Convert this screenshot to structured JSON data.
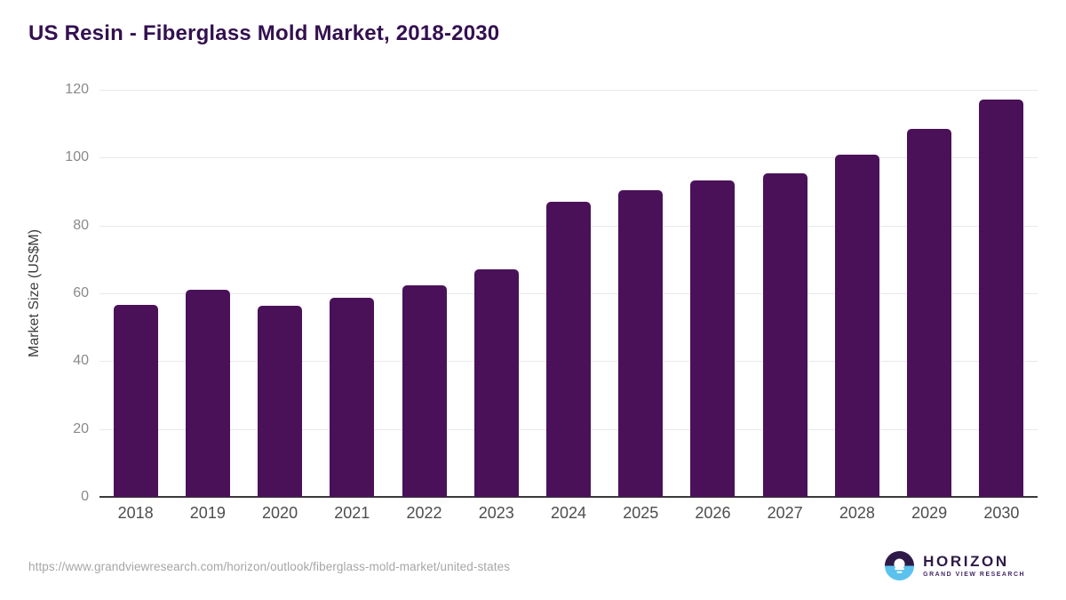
{
  "header": {
    "title": "US Resin - Fiberglass Mold Market, 2018-2030"
  },
  "footer": {
    "source_url": "https://www.grandviewresearch.com/horizon/outlook/fiberglass-mold-market/united-states",
    "logo": {
      "name": "HORIZON",
      "subtitle": "GRAND VIEW RESEARCH",
      "icon": "horizon-sun-over-water-icon"
    }
  },
  "colors": {
    "bar": "#4a1158",
    "title": "#331050",
    "grid": "#e8e8e8",
    "axis": "#3a3a3a",
    "ytick_label": "#8a8a8a",
    "xtick_label": "#4d4d4d",
    "source_url": "#a6a6a6",
    "logo_dark_purple": "#2e1a47",
    "logo_sky_blue": "#5bc2ee"
  },
  "chart_data": {
    "type": "bar",
    "title": "US Resin - Fiberglass Mold Market, 2018-2030",
    "xlabel": "",
    "ylabel": "Market Size (US$M)",
    "categories": [
      "2018",
      "2019",
      "2020",
      "2021",
      "2022",
      "2023",
      "2024",
      "2025",
      "2026",
      "2027",
      "2028",
      "2029",
      "2030"
    ],
    "values": [
      56.7,
      61.0,
      56.3,
      58.8,
      62.4,
      67.1,
      87.0,
      90.3,
      93.4,
      95.4,
      100.9,
      108.6,
      117.1
    ],
    "ylim": [
      0,
      120
    ],
    "yticks": [
      0,
      20,
      40,
      60,
      80,
      100,
      120
    ],
    "grid": true,
    "legend": false,
    "bar_color": "#4a1158"
  }
}
